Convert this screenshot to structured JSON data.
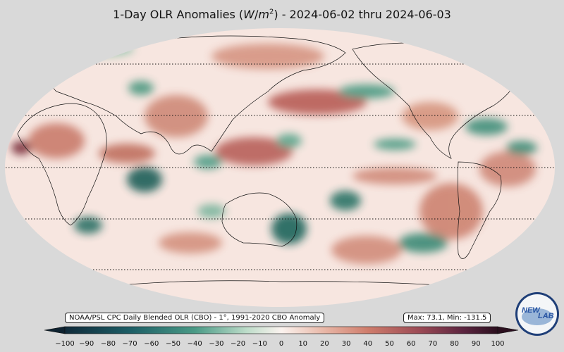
{
  "title": {
    "prefix": "1-Day OLR Anomalies (",
    "unit_w": "W",
    "unit_sep": "/",
    "unit_m": "m",
    "unit_exp": "2",
    "suffix": ") - 2024-06-02 thru 2024-06-03"
  },
  "source_note": "NOAA/PSL CPC Daily Blended OLR (CBO) - 1°, 1991-2020 CBO Anomaly",
  "stats": "Max: 73.1,  Min: -131.5",
  "colorbar": {
    "ticks": [
      "−100",
      "−90",
      "−80",
      "−70",
      "−60",
      "−50",
      "−40",
      "−30",
      "−20",
      "−10",
      "0",
      "10",
      "20",
      "30",
      "40",
      "50",
      "60",
      "70",
      "80",
      "90",
      "100"
    ],
    "min": -100,
    "max": 100,
    "neg_color": "#0d3a3a",
    "mid_color": "#fbf3ef",
    "pos_color": "#2b0f1e"
  },
  "logo": {
    "text_left": "NEW",
    "text_right": "LAB"
  },
  "colors": {
    "background": "#d9d9d9",
    "positive_anomaly": "#c8796a",
    "negative_anomaly": "#2e8a76",
    "neutral": "#fbf1ec"
  }
}
